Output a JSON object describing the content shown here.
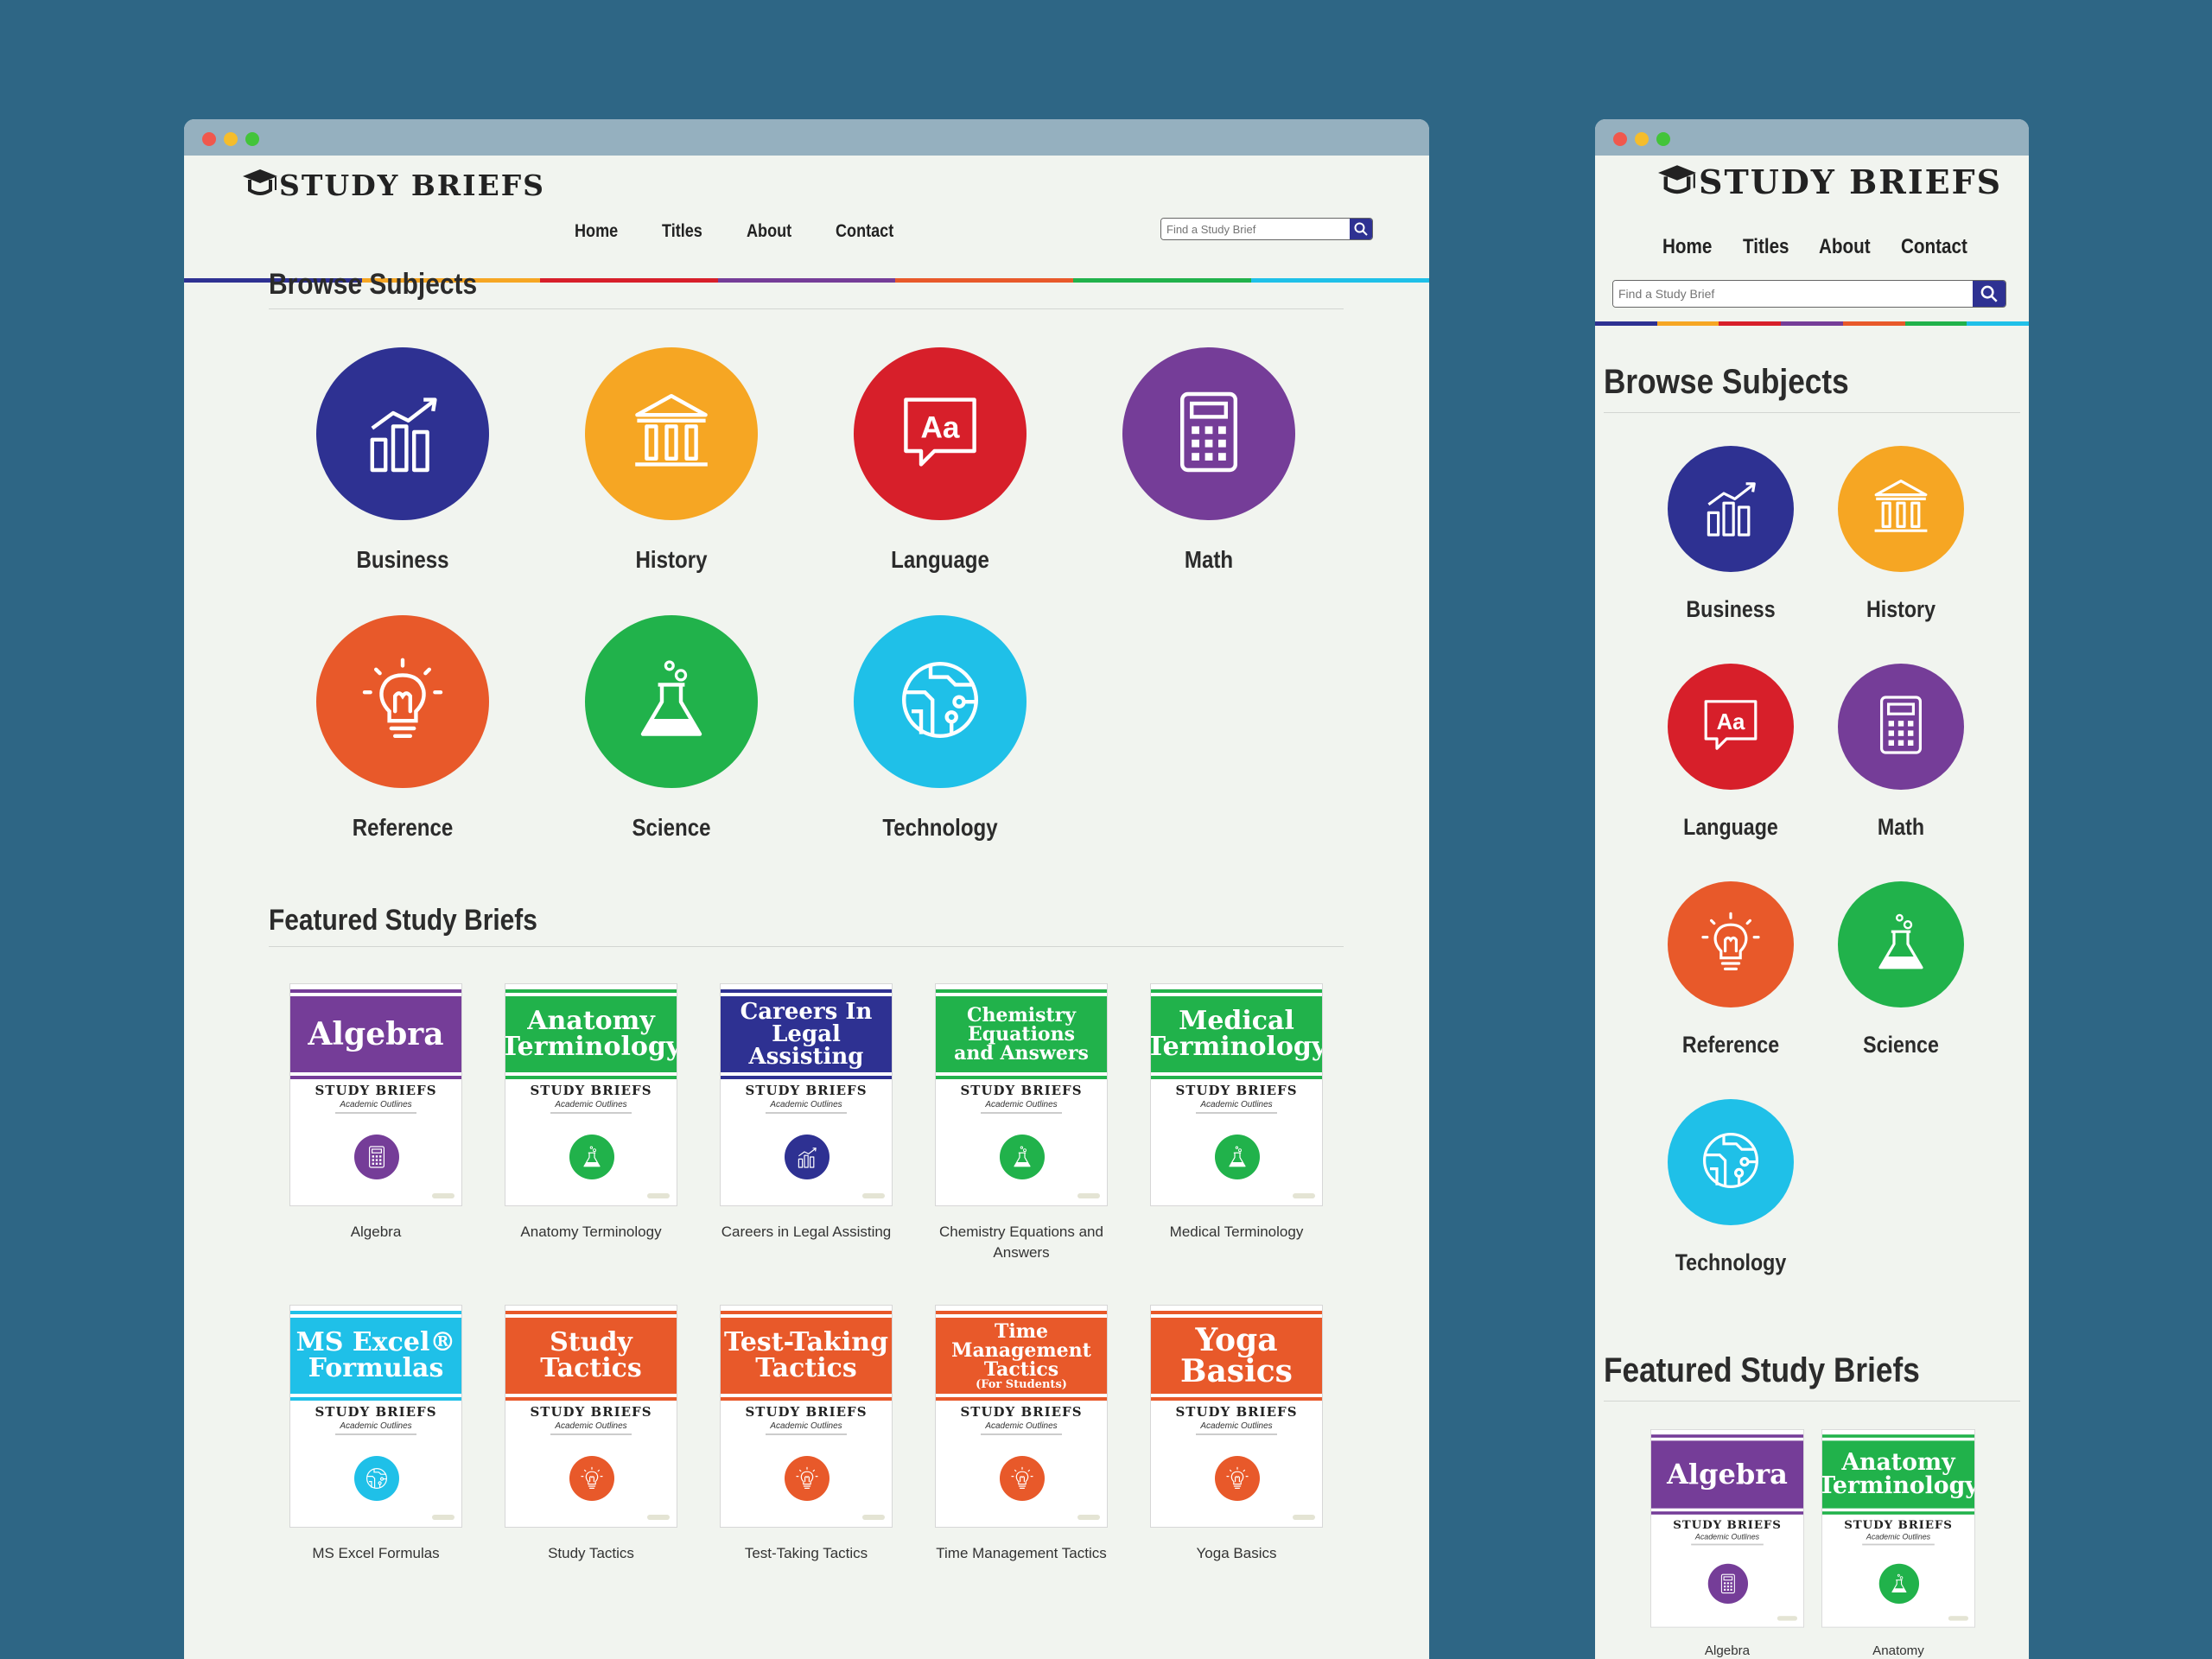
{
  "brand": "STUDY BRIEFS",
  "nav": [
    "Home",
    "Titles",
    "About",
    "Contact"
  ],
  "search": {
    "placeholder": "Find a Study Brief"
  },
  "sections": {
    "browse": "Browse Subjects",
    "featured": "Featured Study Briefs"
  },
  "subjects": [
    {
      "label": "Business",
      "color": "#2e3192",
      "icon": "chart-icon"
    },
    {
      "label": "History",
      "color": "#f6a623",
      "icon": "museum-icon"
    },
    {
      "label": "Language",
      "color": "#d71f2a",
      "icon": "speech-bubble-icon"
    },
    {
      "label": "Math",
      "color": "#753d98",
      "icon": "calculator-icon"
    },
    {
      "label": "Reference",
      "color": "#e8592a",
      "icon": "lightbulb-icon"
    },
    {
      "label": "Science",
      "color": "#21b24b",
      "icon": "flask-icon"
    },
    {
      "label": "Technology",
      "color": "#1fc0e8",
      "icon": "circuit-globe-icon"
    }
  ],
  "cover": {
    "brand": "STUDY BRIEFS",
    "subtitle": "Academic Outlines"
  },
  "books": [
    {
      "title_lines": [
        "Algebra"
      ],
      "caption": "Algebra",
      "color": "#753d98",
      "icon": "calculator-icon"
    },
    {
      "title_lines": [
        "Anatomy",
        "Terminology"
      ],
      "caption": "Anatomy Terminology",
      "color": "#21b24b",
      "icon": "flask-icon"
    },
    {
      "title_lines": [
        "Careers In",
        "Legal Assisting"
      ],
      "caption": "Careers in Legal Assisting",
      "color": "#2e3192",
      "icon": "chart-icon"
    },
    {
      "title_lines": [
        "Chemistry",
        "Equations",
        "and Answers"
      ],
      "caption": "Chemistry Equations and Answers",
      "color": "#21b24b",
      "icon": "flask-icon"
    },
    {
      "title_lines": [
        "Medical",
        "Terminology"
      ],
      "caption": "Medical Terminology",
      "color": "#21b24b",
      "icon": "flask-icon"
    },
    {
      "title_lines": [
        "MS Excel®",
        "Formulas"
      ],
      "caption": "MS Excel Formulas",
      "color": "#1fc0e8",
      "icon": "circuit-globe-icon"
    },
    {
      "title_lines": [
        "Study",
        "Tactics"
      ],
      "caption": "Study Tactics",
      "color": "#e8592a",
      "icon": "lightbulb-icon"
    },
    {
      "title_lines": [
        "Test-Taking",
        "Tactics"
      ],
      "caption": "Test-Taking Tactics",
      "color": "#e8592a",
      "icon": "lightbulb-icon"
    },
    {
      "title_lines": [
        "Time Management",
        "Tactics",
        "(For Students)"
      ],
      "caption": "Time Management Tactics",
      "color": "#e8592a",
      "icon": "lightbulb-icon"
    },
    {
      "title_lines": [
        "Yoga Basics"
      ],
      "caption": "Yoga Basics",
      "color": "#e8592a",
      "icon": "lightbulb-icon"
    }
  ],
  "mobile_books": [
    {
      "title_lines": [
        "Algebra"
      ],
      "caption": "Algebra",
      "color": "#753d98",
      "icon": "calculator-icon"
    },
    {
      "title_lines": [
        "Anatomy",
        "Terminology"
      ],
      "caption": "Anatomy",
      "color": "#21b24b",
      "icon": "flask-icon"
    }
  ]
}
